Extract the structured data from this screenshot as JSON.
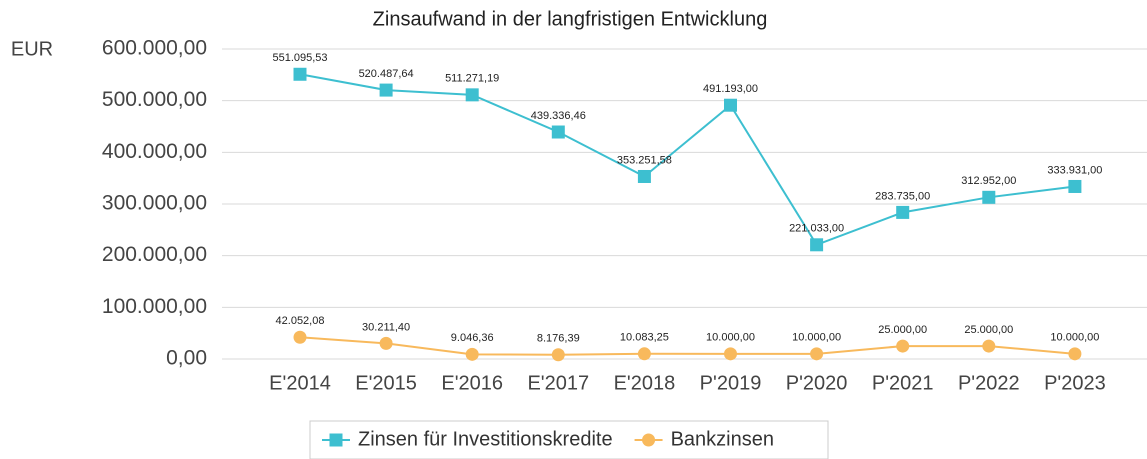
{
  "chart_data": {
    "type": "line",
    "title": "Zinsaufwand in der langfristigen Entwicklung",
    "y_label": "EUR",
    "categories": [
      "E'2014",
      "E'2015",
      "E'2016",
      "E'2017",
      "E'2018",
      "P'2019",
      "P'2020",
      "P'2021",
      "P'2022",
      "P'2023"
    ],
    "series": [
      {
        "name": "Zinsen für Investitionskredite",
        "color": "#3dbfd0",
        "marker": "square",
        "values": [
          551095.53,
          520487.64,
          511271.19,
          439336.46,
          353251.58,
          491193,
          221033,
          283735,
          312952,
          333931
        ],
        "value_labels": [
          "551.095,53",
          "520.487,64",
          "511.271,19",
          "439.336,46",
          "353.251,58",
          "491.193,00",
          "221.033,00",
          "283.735,00",
          "312.952,00",
          "333.931,00"
        ]
      },
      {
        "name": "Bankzinsen",
        "color": "#f8b95c",
        "marker": "circle",
        "values": [
          42052.08,
          30211.4,
          9046.36,
          8176.39,
          10083.25,
          10000,
          10000,
          25000,
          25000,
          10000
        ],
        "value_labels": [
          "42.052,08",
          "30.211,40",
          "9.046,36",
          "8.176,39",
          "10.083,25",
          "10.000,00",
          "10.000,00",
          "25.000,00",
          "25.000,00",
          "10.000,00"
        ]
      }
    ],
    "ylim": [
      0,
      600000
    ],
    "yticks": [
      {
        "value": 0,
        "label": "0,00"
      },
      {
        "value": 100000,
        "label": "100.000,00"
      },
      {
        "value": 200000,
        "label": "200.000,00"
      },
      {
        "value": 300000,
        "label": "300.000,00"
      },
      {
        "value": 400000,
        "label": "400.000,00"
      },
      {
        "value": 500000,
        "label": "500.000,00"
      },
      {
        "value": 600000,
        "label": "600.000,00"
      }
    ],
    "grid": true,
    "legend": "bottom"
  }
}
